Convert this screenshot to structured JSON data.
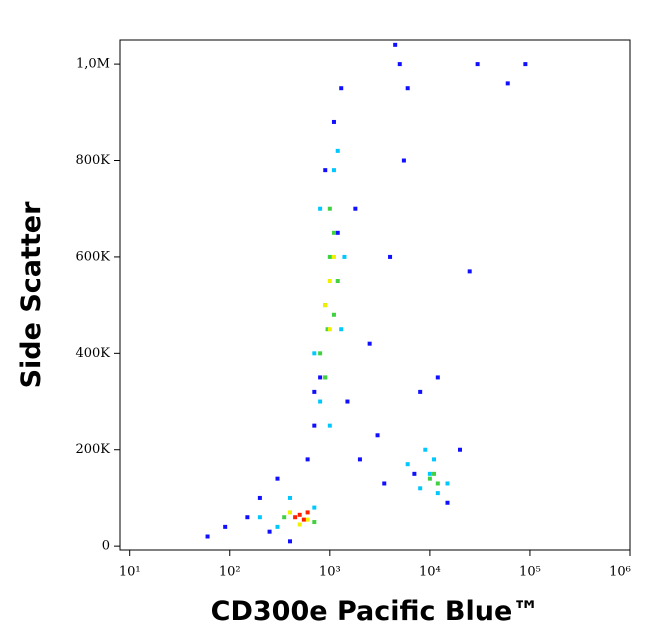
{
  "chart_data": {
    "type": "scatter",
    "xlabel": "CD300e Pacific Blue™",
    "ylabel": "Side Scatter",
    "xscale": "log",
    "xlim": [
      8,
      1000000
    ],
    "ylim": [
      -8000,
      1050000
    ],
    "xticks": [
      {
        "value": 10,
        "label": "10¹"
      },
      {
        "value": 100,
        "label": "10²"
      },
      {
        "value": 1000,
        "label": "10³"
      },
      {
        "value": 10000,
        "label": "10⁴"
      },
      {
        "value": 100000,
        "label": "10⁵"
      },
      {
        "value": 1000000,
        "label": "10⁶"
      }
    ],
    "yticks": [
      0,
      {
        "value": 200000,
        "label": "200K"
      },
      {
        "value": 400000,
        "label": "400K"
      },
      {
        "value": 600000,
        "label": "600K"
      },
      {
        "value": 800000,
        "label": "800K"
      },
      {
        "value": 1000000,
        "label": "1,0M"
      }
    ],
    "series": [
      {
        "color": "#1010ff",
        "x": [
          60,
          90,
          150,
          200,
          250,
          300,
          700,
          800,
          1500,
          2000,
          2500,
          3000,
          4000,
          5000,
          6000,
          5500,
          7000,
          8000,
          12000,
          15000,
          20000,
          25000,
          30000,
          60000,
          90000,
          400,
          600,
          900,
          1100,
          1300,
          1800,
          3500,
          700,
          1200,
          4500
        ],
        "values": [
          20000,
          40000,
          60000,
          100000,
          30000,
          140000,
          250000,
          350000,
          300000,
          180000,
          420000,
          230000,
          600000,
          1000000,
          950000,
          800000,
          150000,
          320000,
          350000,
          90000,
          200000,
          570000,
          1000000,
          960000,
          1000000,
          10000,
          180000,
          780000,
          880000,
          950000,
          700000,
          130000,
          320000,
          650000,
          1040000
        ]
      },
      {
        "color": "#00c8ff",
        "x": [
          700,
          800,
          900,
          1100,
          1300,
          1400,
          800,
          1200,
          8000,
          10000,
          12000,
          15000,
          9000,
          11000,
          6000,
          300,
          400,
          700,
          200,
          1000
        ],
        "values": [
          400000,
          700000,
          350000,
          780000,
          450000,
          600000,
          300000,
          820000,
          120000,
          150000,
          110000,
          130000,
          200000,
          180000,
          170000,
          40000,
          100000,
          80000,
          60000,
          250000
        ]
      },
      {
        "color": "#40d040",
        "x": [
          800,
          900,
          1000,
          1100,
          1200,
          1000,
          950,
          1100,
          10000,
          12000,
          11000,
          350,
          700,
          900
        ],
        "values": [
          400000,
          500000,
          600000,
          650000,
          550000,
          700000,
          450000,
          480000,
          140000,
          130000,
          150000,
          60000,
          50000,
          350000
        ]
      },
      {
        "color": "#f0f000",
        "x": [
          900,
          1000,
          1100,
          1000,
          400,
          600,
          500
        ],
        "values": [
          500000,
          550000,
          600000,
          450000,
          70000,
          55000,
          45000
        ]
      },
      {
        "color": "#ff2000",
        "x": [
          450,
          500,
          550,
          600
        ],
        "values": [
          60000,
          65000,
          55000,
          70000
        ]
      }
    ]
  }
}
